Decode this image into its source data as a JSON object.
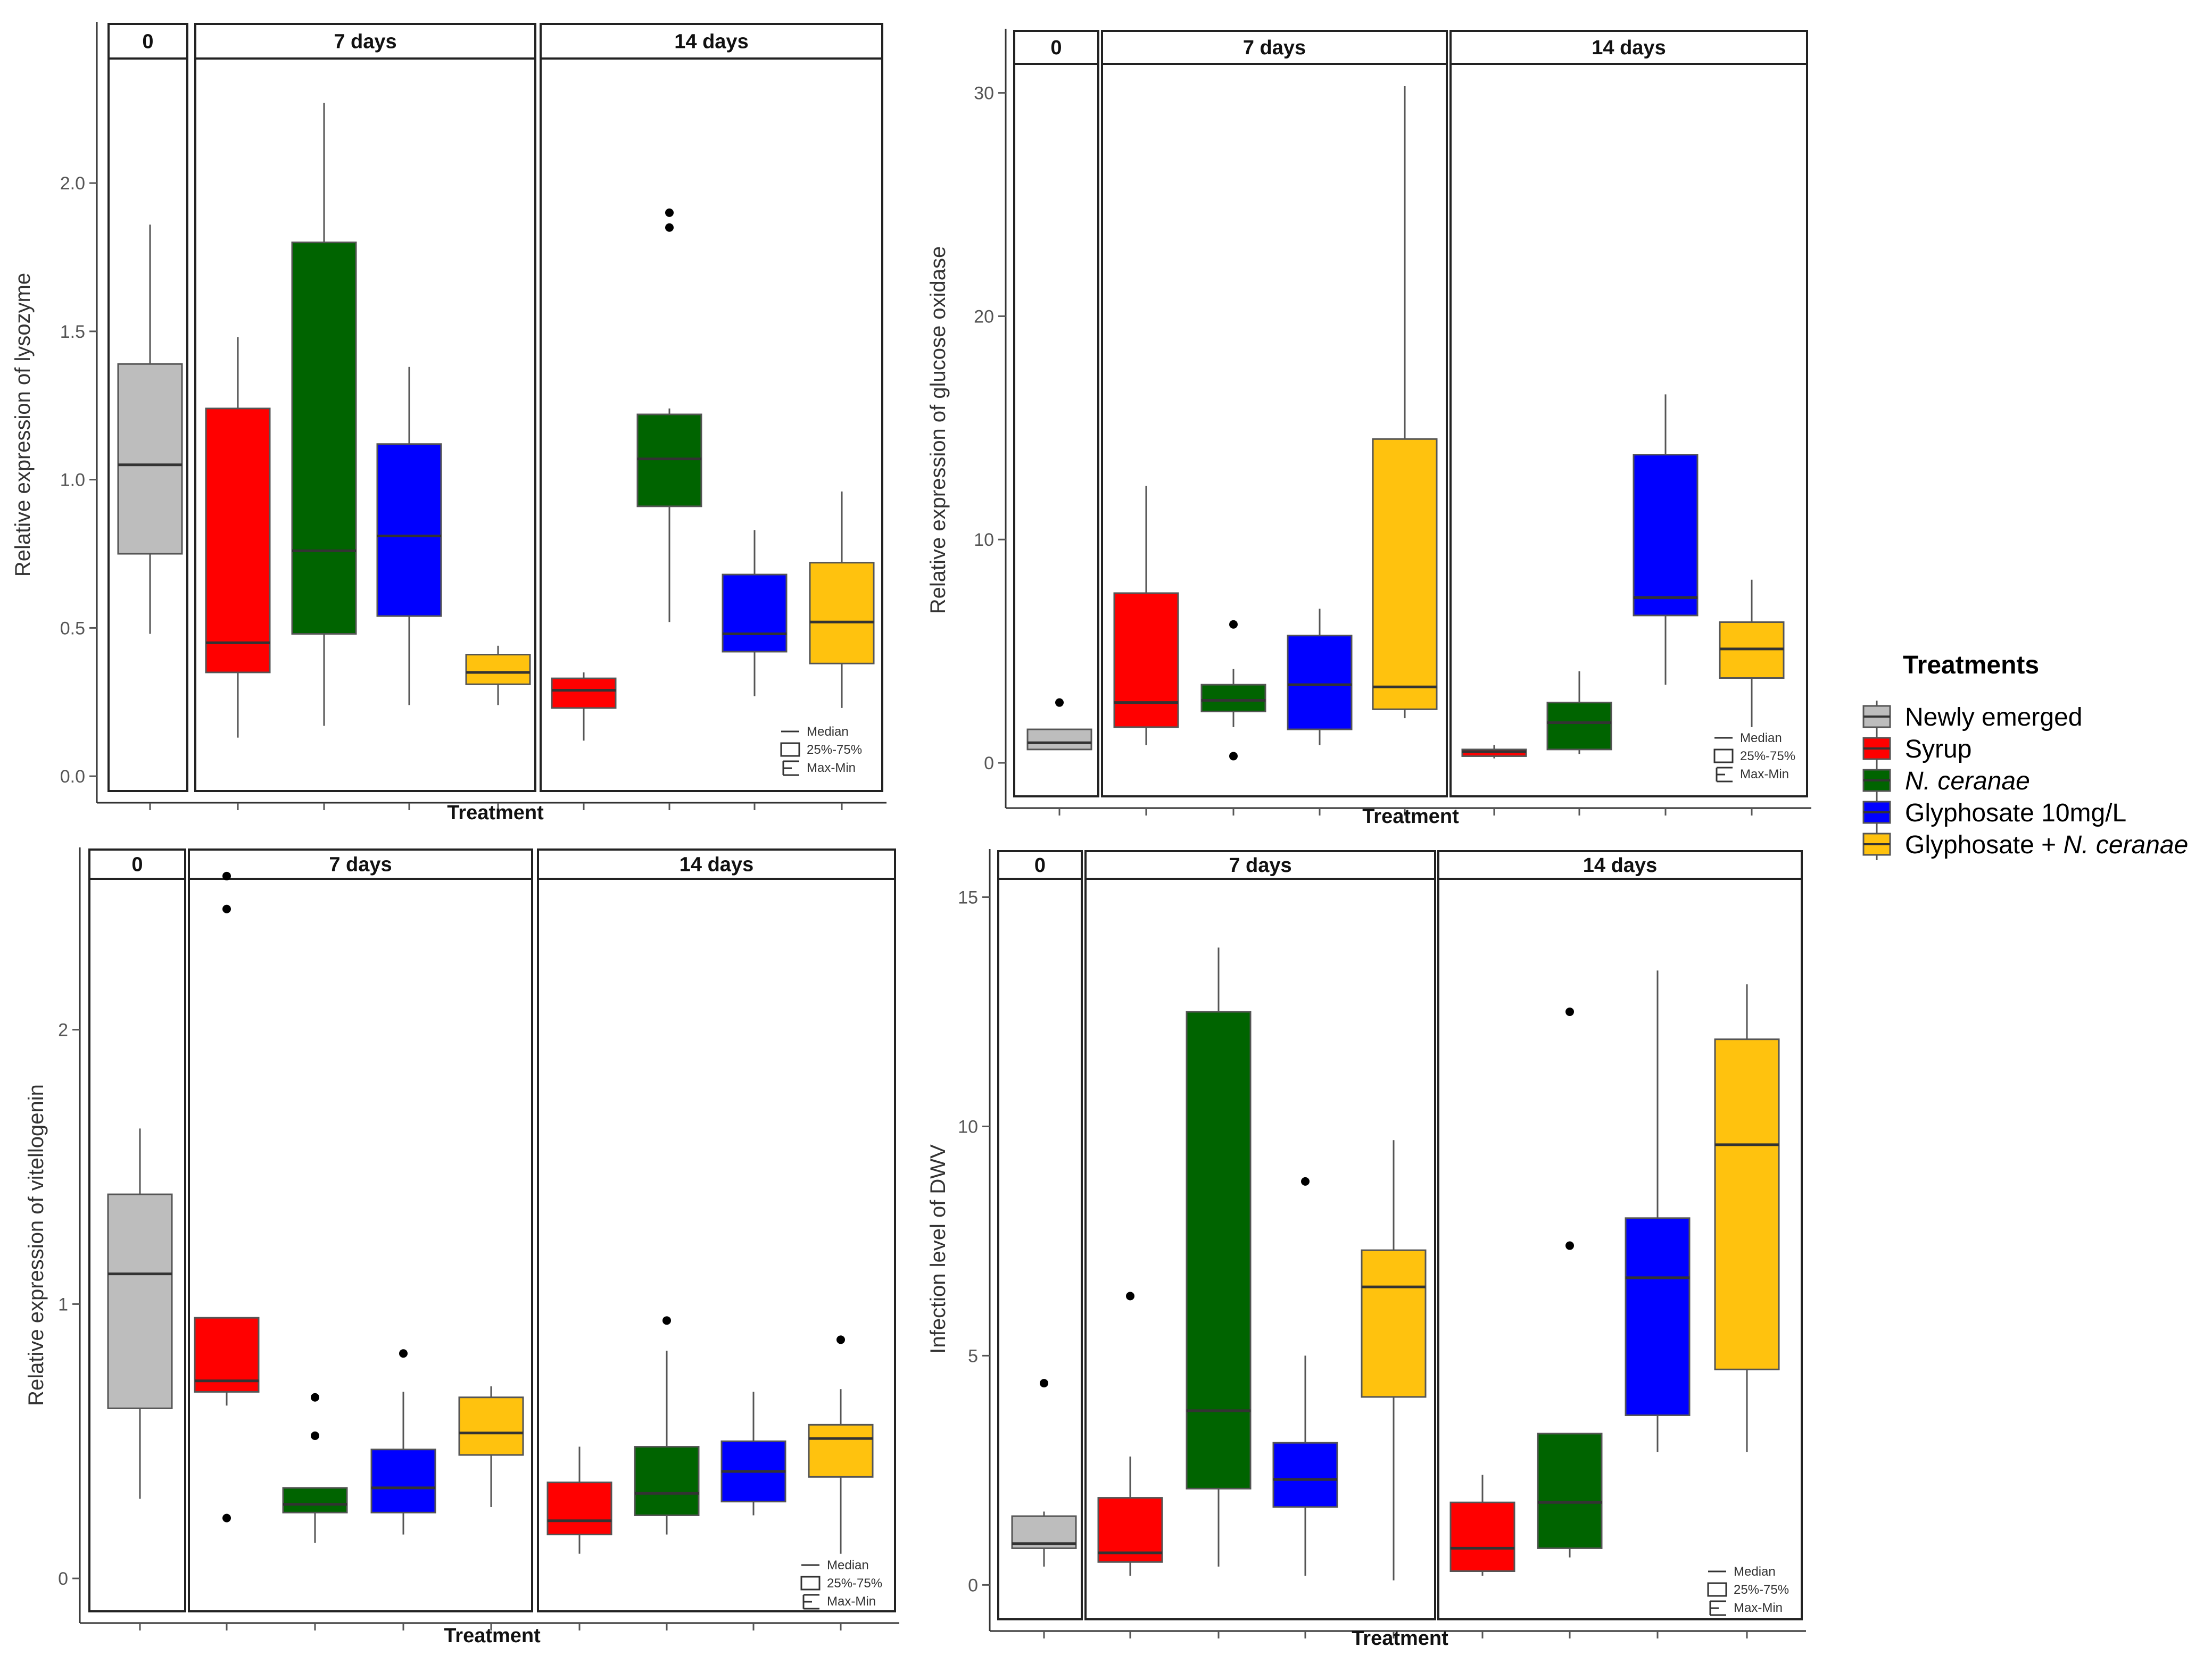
{
  "figure": {
    "panel_labels": {
      "day0": "0",
      "day7": "7 days",
      "day14": "14 days"
    },
    "key": {
      "median": "Median",
      "iqr": "25%-75%",
      "range": "Max-Min"
    },
    "legend": {
      "title": "Treatments",
      "items": [
        {
          "name": "Newly emerged",
          "color": "#bdbdbd",
          "italic_part": ""
        },
        {
          "name": "Syrup",
          "color": "#ff0000",
          "italic_part": ""
        },
        {
          "name": "",
          "color": "#006400",
          "italic_part": "N. ceranae"
        },
        {
          "name": "Glyphosate 10mg/L",
          "color": "#0000ff",
          "italic_part": ""
        },
        {
          "name": "Glyphosate + ",
          "color": "#ffc20e",
          "italic_part": "N. ceranae"
        }
      ]
    }
  },
  "chart_data": [
    {
      "id": "lysozyme",
      "type": "box",
      "title": "",
      "xlabel": "Treatment",
      "ylabel": "Relative expression of lysozyme",
      "ylim": [
        -0.05,
        2.42
      ],
      "yticks": [
        0.0,
        0.5,
        1.0,
        1.5,
        2.0
      ],
      "tick_labels": [
        "0.0",
        "0.5",
        "1.0",
        "1.5",
        "2.0"
      ],
      "boxes": [
        {
          "group": "Newly emerged",
          "time": "0",
          "min": 0.48,
          "q1": 0.75,
          "median": 1.05,
          "q3": 1.39,
          "max": 1.86,
          "outliers": []
        },
        {
          "group": "Syrup",
          "time": "7 days",
          "min": 0.13,
          "q1": 0.35,
          "median": 0.45,
          "q3": 1.24,
          "max": 1.48,
          "outliers": []
        },
        {
          "group": "N. ceranae",
          "time": "7 days",
          "min": 0.17,
          "q1": 0.48,
          "median": 0.76,
          "q3": 1.8,
          "max": 2.27,
          "outliers": []
        },
        {
          "group": "Glyphosate 10mg/L",
          "time": "7 days",
          "min": 0.24,
          "q1": 0.54,
          "median": 0.81,
          "q3": 1.12,
          "max": 1.38,
          "outliers": []
        },
        {
          "group": "Glyphosate + N. ceranae",
          "time": "7 days",
          "min": 0.24,
          "q1": 0.31,
          "median": 0.35,
          "q3": 0.41,
          "max": 0.44,
          "outliers": []
        },
        {
          "group": "Syrup",
          "time": "14 days",
          "min": 0.12,
          "q1": 0.23,
          "median": 0.29,
          "q3": 0.33,
          "max": 0.35,
          "outliers": []
        },
        {
          "group": "N. ceranae",
          "time": "14 days",
          "min": 0.52,
          "q1": 0.91,
          "median": 1.07,
          "q3": 1.22,
          "max": 1.24,
          "outliers": [
            1.85,
            1.9
          ]
        },
        {
          "group": "Glyphosate 10mg/L",
          "time": "14 days",
          "min": 0.27,
          "q1": 0.42,
          "median": 0.48,
          "q3": 0.68,
          "max": 0.83,
          "outliers": []
        },
        {
          "group": "Glyphosate + N. ceranae",
          "time": "14 days",
          "min": 0.23,
          "q1": 0.38,
          "median": 0.52,
          "q3": 0.72,
          "max": 0.96,
          "outliers": []
        }
      ]
    },
    {
      "id": "glucose_oxidase",
      "type": "box",
      "title": "",
      "xlabel": "Treatment",
      "ylabel": "Relative expression of glucose oxidase",
      "ylim": [
        -1.5,
        31.3
      ],
      "yticks": [
        0,
        10,
        20,
        30
      ],
      "tick_labels": [
        "0",
        "10",
        "20",
        "30"
      ],
      "boxes": [
        {
          "group": "Newly emerged",
          "time": "0",
          "min": 0.6,
          "q1": 0.6,
          "median": 0.9,
          "q3": 1.5,
          "max": 1.5,
          "outliers": [
            2.7
          ]
        },
        {
          "group": "Syrup",
          "time": "7 days",
          "min": 0.8,
          "q1": 1.6,
          "median": 2.7,
          "q3": 7.6,
          "max": 12.4,
          "outliers": []
        },
        {
          "group": "N. ceranae",
          "time": "7 days",
          "min": 1.6,
          "q1": 2.3,
          "median": 2.8,
          "q3": 3.5,
          "max": 4.2,
          "outliers": [
            0.3,
            6.2
          ]
        },
        {
          "group": "Glyphosate 10mg/L",
          "time": "7 days",
          "min": 0.8,
          "q1": 1.5,
          "median": 3.5,
          "q3": 5.7,
          "max": 6.9,
          "outliers": []
        },
        {
          "group": "Glyphosate + N. ceranae",
          "time": "7 days",
          "min": 2.0,
          "q1": 2.4,
          "median": 3.4,
          "q3": 14.5,
          "max": 30.3,
          "outliers": []
        },
        {
          "group": "Syrup",
          "time": "14 days",
          "min": 0.2,
          "q1": 0.3,
          "median": 0.5,
          "q3": 0.6,
          "max": 0.8,
          "outliers": []
        },
        {
          "group": "N. ceranae",
          "time": "14 days",
          "min": 0.4,
          "q1": 0.6,
          "median": 1.8,
          "q3": 2.7,
          "max": 4.1,
          "outliers": []
        },
        {
          "group": "Glyphosate 10mg/L",
          "time": "14 days",
          "min": 3.5,
          "q1": 6.6,
          "median": 7.4,
          "q3": 13.8,
          "max": 16.5,
          "outliers": []
        },
        {
          "group": "Glyphosate + N. ceranae",
          "time": "14 days",
          "min": 1.6,
          "q1": 3.8,
          "median": 5.1,
          "q3": 6.3,
          "max": 8.2,
          "outliers": []
        }
      ]
    },
    {
      "id": "vitellogenin",
      "type": "box",
      "title": "",
      "xlabel": "Treatment",
      "ylabel": "Relative expression of vitellogenin",
      "ylim": [
        -0.12,
        2.55
      ],
      "yticks": [
        0,
        1,
        2
      ],
      "tick_labels": [
        "0",
        "1",
        "2"
      ],
      "boxes": [
        {
          "group": "Newly emerged",
          "time": "0",
          "min": 0.29,
          "q1": 0.62,
          "median": 1.11,
          "q3": 1.4,
          "max": 1.64,
          "outliers": []
        },
        {
          "group": "Syrup",
          "time": "7 days",
          "min": 0.63,
          "q1": 0.68,
          "median": 0.72,
          "q3": 0.95,
          "max": 0.95,
          "outliers": [
            0.22,
            2.44,
            2.56
          ]
        },
        {
          "group": "N. ceranae",
          "time": "7 days",
          "min": 0.13,
          "q1": 0.24,
          "median": 0.27,
          "q3": 0.33,
          "max": 0.33,
          "outliers": [
            0.52,
            0.66
          ]
        },
        {
          "group": "Glyphosate 10mg/L",
          "time": "7 days",
          "min": 0.16,
          "q1": 0.24,
          "median": 0.33,
          "q3": 0.47,
          "max": 0.68,
          "outliers": [
            0.82
          ]
        },
        {
          "group": "Glyphosate + N. ceranae",
          "time": "7 days",
          "min": 0.26,
          "q1": 0.45,
          "median": 0.53,
          "q3": 0.66,
          "max": 0.7,
          "outliers": []
        },
        {
          "group": "Syrup",
          "time": "14 days",
          "min": 0.09,
          "q1": 0.16,
          "median": 0.21,
          "q3": 0.35,
          "max": 0.48,
          "outliers": []
        },
        {
          "group": "N. ceranae",
          "time": "14 days",
          "min": 0.16,
          "q1": 0.23,
          "median": 0.31,
          "q3": 0.48,
          "max": 0.83,
          "outliers": [
            0.94
          ]
        },
        {
          "group": "Glyphosate 10mg/L",
          "time": "14 days",
          "min": 0.23,
          "q1": 0.28,
          "median": 0.39,
          "q3": 0.5,
          "max": 0.68,
          "outliers": []
        },
        {
          "group": "Glyphosate + N. ceranae",
          "time": "14 days",
          "min": 0.09,
          "q1": 0.37,
          "median": 0.51,
          "q3": 0.56,
          "max": 0.69,
          "outliers": [
            0.87
          ]
        }
      ]
    },
    {
      "id": "dwv",
      "type": "box",
      "title": "",
      "xlabel": "Treatment",
      "ylabel": "Infection level of DWV",
      "ylim": [
        -0.75,
        15.4
      ],
      "yticks": [
        0,
        5,
        10,
        15
      ],
      "tick_labels": [
        "0",
        "5",
        "10",
        "15"
      ],
      "boxes": [
        {
          "group": "Newly emerged",
          "time": "0",
          "min": 0.4,
          "q1": 0.8,
          "median": 0.9,
          "q3": 1.5,
          "max": 1.6,
          "outliers": [
            4.4
          ]
        },
        {
          "group": "Syrup",
          "time": "7 days",
          "min": 0.2,
          "q1": 0.5,
          "median": 0.7,
          "q3": 1.9,
          "max": 2.8,
          "outliers": [
            6.3
          ]
        },
        {
          "group": "N. ceranae",
          "time": "7 days",
          "min": 0.4,
          "q1": 2.1,
          "median": 3.8,
          "q3": 12.5,
          "max": 13.9,
          "outliers": []
        },
        {
          "group": "Glyphosate 10mg/L",
          "time": "7 days",
          "min": 0.2,
          "q1": 1.7,
          "median": 2.3,
          "q3": 3.1,
          "max": 5.0,
          "outliers": [
            8.8
          ]
        },
        {
          "group": "Glyphosate + N. ceranae",
          "time": "7 days",
          "min": 0.1,
          "q1": 4.1,
          "median": 6.5,
          "q3": 7.3,
          "max": 9.7,
          "outliers": []
        },
        {
          "group": "Syrup",
          "time": "14 days",
          "min": 0.2,
          "q1": 0.3,
          "median": 0.8,
          "q3": 1.8,
          "max": 2.4,
          "outliers": []
        },
        {
          "group": "N. ceranae",
          "time": "14 days",
          "min": 0.6,
          "q1": 0.8,
          "median": 1.8,
          "q3": 3.3,
          "max": 3.3,
          "outliers": [
            7.4,
            12.5
          ]
        },
        {
          "group": "Glyphosate 10mg/L",
          "time": "14 days",
          "min": 2.9,
          "q1": 3.7,
          "median": 6.7,
          "q3": 8.0,
          "max": 13.4,
          "outliers": []
        },
        {
          "group": "Glyphosate + N. ceranae",
          "time": "14 days",
          "min": 2.9,
          "q1": 4.7,
          "median": 9.6,
          "q3": 11.9,
          "max": 13.1,
          "outliers": []
        }
      ]
    }
  ]
}
